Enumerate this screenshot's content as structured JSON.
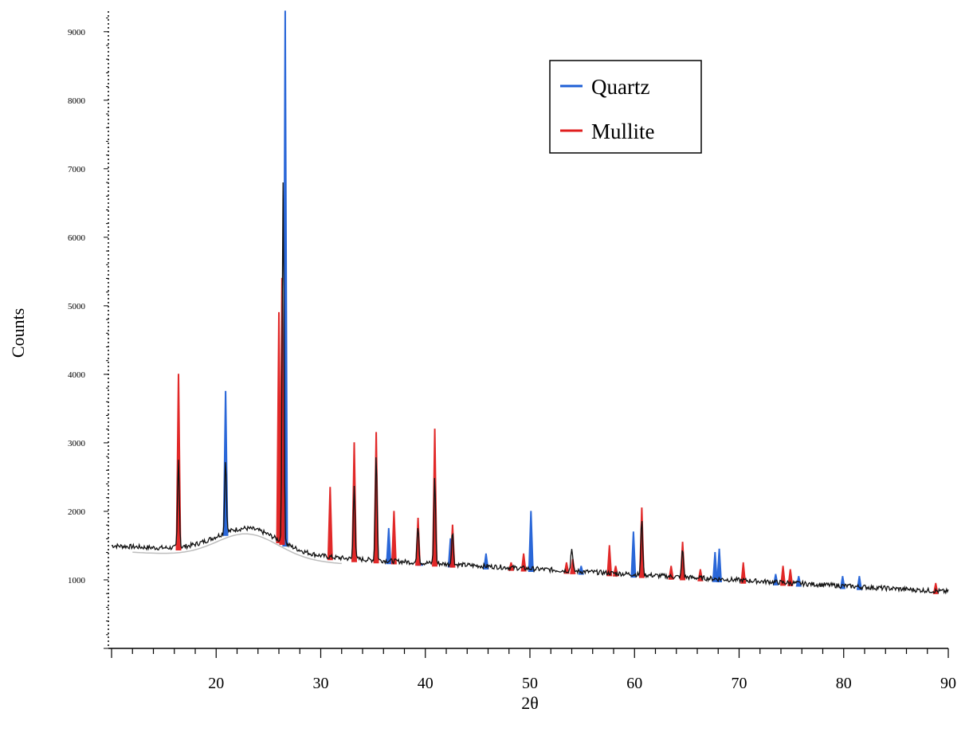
{
  "chart_data": {
    "type": "line",
    "title": "",
    "xlabel": "2θ",
    "ylabel": "Counts",
    "xlim": [
      10,
      90
    ],
    "ylim": [
      0,
      9300
    ],
    "x_ticks": [
      20,
      30,
      40,
      50,
      60,
      70,
      80,
      90
    ],
    "y_ticks": [
      1000,
      2000,
      3000,
      4000,
      5000,
      6000,
      7000,
      8000,
      9000
    ],
    "grid": false,
    "legend_position": "top-right",
    "legend": [
      {
        "name": "Quartz",
        "color": "#1f5fd6"
      },
      {
        "name": "Mullite",
        "color": "#e01e1e"
      }
    ],
    "background_hump": {
      "center": 23,
      "height": 1900
    },
    "series": [
      {
        "name": "Quartz",
        "color": "#1f5fd6",
        "peaks": [
          {
            "x": 20.9,
            "y": 3750
          },
          {
            "x": 26.6,
            "y": 9300
          },
          {
            "x": 36.5,
            "y": 1750
          },
          {
            "x": 39.5,
            "y": 1250
          },
          {
            "x": 42.4,
            "y": 1600
          },
          {
            "x": 45.8,
            "y": 1380
          },
          {
            "x": 50.1,
            "y": 2000
          },
          {
            "x": 54.9,
            "y": 1200
          },
          {
            "x": 59.9,
            "y": 1700
          },
          {
            "x": 67.7,
            "y": 1400
          },
          {
            "x": 68.1,
            "y": 1450
          },
          {
            "x": 73.5,
            "y": 1080
          },
          {
            "x": 75.7,
            "y": 1050
          },
          {
            "x": 79.9,
            "y": 1050
          },
          {
            "x": 81.5,
            "y": 1050
          }
        ]
      },
      {
        "name": "Mullite",
        "color": "#e01e1e",
        "peaks": [
          {
            "x": 16.4,
            "y": 4000
          },
          {
            "x": 26.0,
            "y": 4900
          },
          {
            "x": 26.3,
            "y": 5400
          },
          {
            "x": 30.9,
            "y": 2350
          },
          {
            "x": 33.2,
            "y": 3000
          },
          {
            "x": 35.3,
            "y": 3150
          },
          {
            "x": 37.0,
            "y": 2000
          },
          {
            "x": 39.3,
            "y": 1900
          },
          {
            "x": 40.9,
            "y": 3200
          },
          {
            "x": 42.6,
            "y": 1800
          },
          {
            "x": 48.2,
            "y": 1250
          },
          {
            "x": 49.4,
            "y": 1380
          },
          {
            "x": 53.5,
            "y": 1250
          },
          {
            "x": 54.1,
            "y": 1300
          },
          {
            "x": 57.6,
            "y": 1500
          },
          {
            "x": 58.2,
            "y": 1200
          },
          {
            "x": 60.7,
            "y": 2050
          },
          {
            "x": 64.6,
            "y": 1550
          },
          {
            "x": 63.5,
            "y": 1200
          },
          {
            "x": 66.3,
            "y": 1150
          },
          {
            "x": 70.4,
            "y": 1250
          },
          {
            "x": 74.2,
            "y": 1200
          },
          {
            "x": 74.9,
            "y": 1150
          },
          {
            "x": 88.8,
            "y": 950
          }
        ]
      },
      {
        "name": "",
        "color": "#000000",
        "note_color_only": true,
        "peaks": [
          {
            "x": 16.4,
            "y": 2750
          },
          {
            "x": 20.9,
            "y": 2750
          },
          {
            "x": 26.4,
            "y": 6800
          },
          {
            "x": 33.2,
            "y": 2400
          },
          {
            "x": 35.3,
            "y": 2850
          },
          {
            "x": 39.3,
            "y": 1800
          },
          {
            "x": 40.9,
            "y": 2500
          },
          {
            "x": 42.6,
            "y": 1700
          },
          {
            "x": 54.0,
            "y": 1480
          },
          {
            "x": 60.7,
            "y": 1900
          },
          {
            "x": 64.6,
            "y": 1450
          }
        ]
      }
    ]
  }
}
